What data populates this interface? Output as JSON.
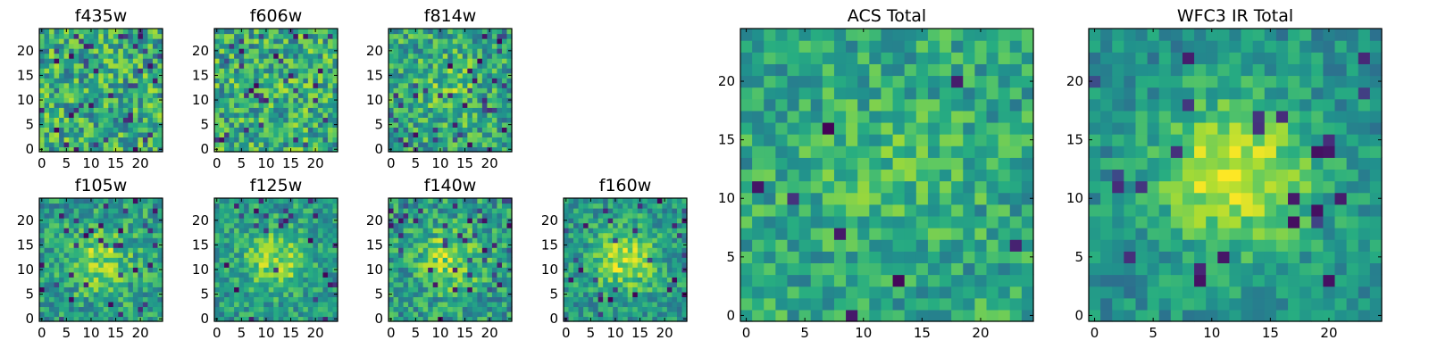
{
  "chart_data": [
    {
      "type": "heatmap",
      "title": "f435w",
      "grid_size": 25,
      "colormap": "viridis",
      "xlim": [
        0,
        24
      ],
      "ylim": [
        0,
        24
      ],
      "xticks": [
        0,
        5,
        10,
        15,
        20
      ],
      "yticks": [
        0,
        5,
        10,
        15,
        20
      ],
      "center_peak": 0.0,
      "noise_level": 1.0,
      "dark_pixel_fraction": 0.06
    },
    {
      "type": "heatmap",
      "title": "f606w",
      "grid_size": 25,
      "colormap": "viridis",
      "xlim": [
        0,
        24
      ],
      "ylim": [
        0,
        24
      ],
      "xticks": [
        0,
        5,
        10,
        15,
        20
      ],
      "yticks": [
        0,
        5,
        10,
        15,
        20
      ],
      "center_peak": 0.05,
      "noise_level": 1.0,
      "dark_pixel_fraction": 0.05
    },
    {
      "type": "heatmap",
      "title": "f814w",
      "grid_size": 25,
      "colormap": "viridis",
      "xlim": [
        0,
        24
      ],
      "ylim": [
        0,
        24
      ],
      "xticks": [
        0,
        5,
        10,
        15,
        20
      ],
      "yticks": [
        0,
        5,
        10,
        15,
        20
      ],
      "center_peak": 0.25,
      "noise_level": 0.9,
      "dark_pixel_fraction": 0.05
    },
    {
      "type": "heatmap",
      "title": "f105w",
      "grid_size": 25,
      "colormap": "viridis",
      "xlim": [
        0,
        24
      ],
      "ylim": [
        0,
        24
      ],
      "xticks": [
        0,
        5,
        10,
        15,
        20
      ],
      "yticks": [
        0,
        5,
        10,
        15,
        20
      ],
      "center_peak": 0.5,
      "noise_level": 0.8,
      "dark_pixel_fraction": 0.06
    },
    {
      "type": "heatmap",
      "title": "f125w",
      "grid_size": 25,
      "colormap": "viridis",
      "xlim": [
        0,
        24
      ],
      "ylim": [
        0,
        24
      ],
      "xticks": [
        0,
        5,
        10,
        15,
        20
      ],
      "yticks": [
        0,
        5,
        10,
        15,
        20
      ],
      "center_peak": 0.6,
      "noise_level": 0.7,
      "dark_pixel_fraction": 0.05
    },
    {
      "type": "heatmap",
      "title": "f140w",
      "grid_size": 25,
      "colormap": "viridis",
      "xlim": [
        0,
        24
      ],
      "ylim": [
        0,
        24
      ],
      "xticks": [
        0,
        5,
        10,
        15,
        20
      ],
      "yticks": [
        0,
        5,
        10,
        15,
        20
      ],
      "center_peak": 0.6,
      "noise_level": 0.8,
      "dark_pixel_fraction": 0.06
    },
    {
      "type": "heatmap",
      "title": "f160w",
      "grid_size": 25,
      "colormap": "viridis",
      "xlim": [
        0,
        24
      ],
      "ylim": [
        0,
        24
      ],
      "xticks": [
        0,
        5,
        10,
        15,
        20
      ],
      "yticks": [
        0,
        5,
        10,
        15,
        20
      ],
      "center_peak": 0.7,
      "noise_level": 0.7,
      "dark_pixel_fraction": 0.04
    },
    {
      "type": "heatmap",
      "title": "ACS Total",
      "grid_size": 25,
      "colormap": "viridis",
      "xlim": [
        0,
        24
      ],
      "ylim": [
        0,
        24
      ],
      "xticks": [
        0,
        5,
        10,
        15,
        20
      ],
      "yticks": [
        0,
        5,
        10,
        15,
        20
      ],
      "center_peak": 0.2,
      "noise_level": 0.7,
      "dark_pixel_fraction": 0.02
    },
    {
      "type": "heatmap",
      "title": "WFC3 IR Total",
      "grid_size": 25,
      "colormap": "viridis",
      "xlim": [
        0,
        24
      ],
      "ylim": [
        0,
        24
      ],
      "xticks": [
        0,
        5,
        10,
        15,
        20
      ],
      "yticks": [
        0,
        5,
        10,
        15,
        20
      ],
      "center_peak": 0.9,
      "noise_level": 0.55,
      "dark_pixel_fraction": 0.03
    }
  ]
}
